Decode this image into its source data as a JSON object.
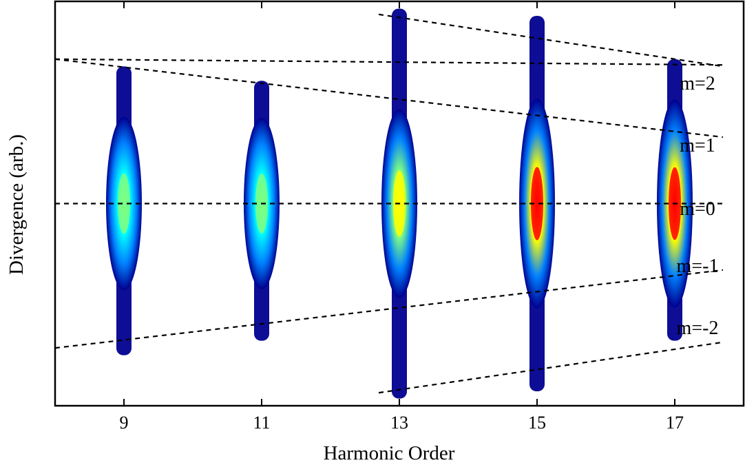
{
  "chart_data": {
    "type": "heatmap",
    "title": "",
    "xlabel": "Harmonic Order",
    "ylabel": "Divergence (arb.)",
    "xlim": [
      8.0,
      18.0
    ],
    "ylim": [
      -1.4,
      1.4
    ],
    "x_ticks": [
      9,
      11,
      13,
      15,
      17
    ],
    "y_ticks": [],
    "grid": false,
    "colormap": [
      "#00008f",
      "#0000ff",
      "#0080ff",
      "#00ffff",
      "#80ff80",
      "#ffff00",
      "#ff8000",
      "#ff0000",
      "#800000"
    ],
    "harmonics": [
      {
        "order": 9,
        "peak": 0.5,
        "extent": [
          -1.05,
          0.95
        ]
      },
      {
        "order": 11,
        "peak": 0.48,
        "extent": [
          -0.95,
          0.85
        ]
      },
      {
        "order": 13,
        "peak": 0.68,
        "extent": [
          -1.35,
          1.35
        ]
      },
      {
        "order": 15,
        "peak": 0.92,
        "extent": [
          -1.3,
          1.3
        ]
      },
      {
        "order": 17,
        "peak": 0.9,
        "extent": [
          -0.95,
          1.0
        ]
      }
    ],
    "series": [
      {
        "name": "m=2",
        "x": [
          8.0,
          17.7
        ],
        "y": [
          1.0,
          0.96
        ],
        "extra": {
          "x": [
            12.7,
            17.7
          ],
          "y": [
            1.31,
            0.95
          ]
        }
      },
      {
        "name": "m=1",
        "x": [
          8.0,
          17.7
        ],
        "y": [
          1.0,
          0.46
        ]
      },
      {
        "name": "m=0",
        "x": [
          8.0,
          17.7
        ],
        "y": [
          0.0,
          0.0
        ]
      },
      {
        "name": "m=-1",
        "x": [
          8.0,
          17.7
        ],
        "y": [
          -1.0,
          -0.46
        ]
      },
      {
        "name": "m=-2",
        "x": [
          12.7,
          17.7
        ],
        "y": [
          -1.31,
          -0.96
        ]
      }
    ],
    "annotations": [
      "m=2",
      "m=1",
      "m=0",
      "m=-1",
      "m=-2"
    ]
  }
}
